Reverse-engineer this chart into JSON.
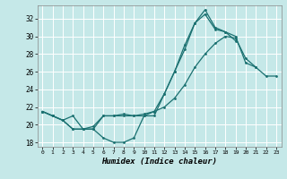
{
  "xlabel": "Humidex (Indice chaleur)",
  "xlim": [
    -0.5,
    23.5
  ],
  "ylim": [
    17.5,
    33.5
  ],
  "yticks": [
    18,
    20,
    22,
    24,
    26,
    28,
    30,
    32
  ],
  "xticks": [
    0,
    1,
    2,
    3,
    4,
    5,
    6,
    7,
    8,
    9,
    10,
    11,
    12,
    13,
    14,
    15,
    16,
    17,
    18,
    19,
    20,
    21,
    22,
    23
  ],
  "bg_color": "#c5e8e8",
  "grid_color": "#ffffff",
  "line_color": "#1a7070",
  "curve1_x": [
    0,
    1,
    2,
    3,
    4,
    5,
    6,
    7,
    8,
    9,
    10,
    11,
    12,
    13,
    14,
    15,
    16,
    17,
    18,
    19
  ],
  "curve1_y": [
    21.5,
    21.0,
    20.5,
    19.5,
    19.5,
    19.5,
    18.5,
    18.0,
    18.0,
    18.5,
    21.0,
    21.0,
    23.5,
    26.0,
    28.5,
    31.5,
    32.5,
    30.8,
    30.5,
    29.5
  ],
  "curve2_x": [
    0,
    1,
    2,
    3,
    4,
    5,
    6,
    7,
    8,
    9,
    10,
    11,
    12,
    13,
    14,
    15,
    16,
    17,
    18,
    19,
    20,
    21,
    22,
    23
  ],
  "curve2_y": [
    21.5,
    21.0,
    20.5,
    21.0,
    19.5,
    19.8,
    21.0,
    21.0,
    21.2,
    21.0,
    21.2,
    21.5,
    22.0,
    23.0,
    24.5,
    26.5,
    28.0,
    29.2,
    30.0,
    29.8,
    27.5,
    26.5,
    25.5,
    25.5
  ],
  "curve3_x": [
    0,
    1,
    2,
    3,
    4,
    5,
    6,
    7,
    8,
    9,
    10,
    11,
    12,
    13,
    14,
    15,
    16,
    17,
    18,
    19,
    20,
    21
  ],
  "curve3_y": [
    21.5,
    21.0,
    20.5,
    19.5,
    19.5,
    19.5,
    21.0,
    21.0,
    21.0,
    21.0,
    21.0,
    21.5,
    23.5,
    26.0,
    29.0,
    31.5,
    33.0,
    31.0,
    30.5,
    30.0,
    27.0,
    26.5
  ]
}
